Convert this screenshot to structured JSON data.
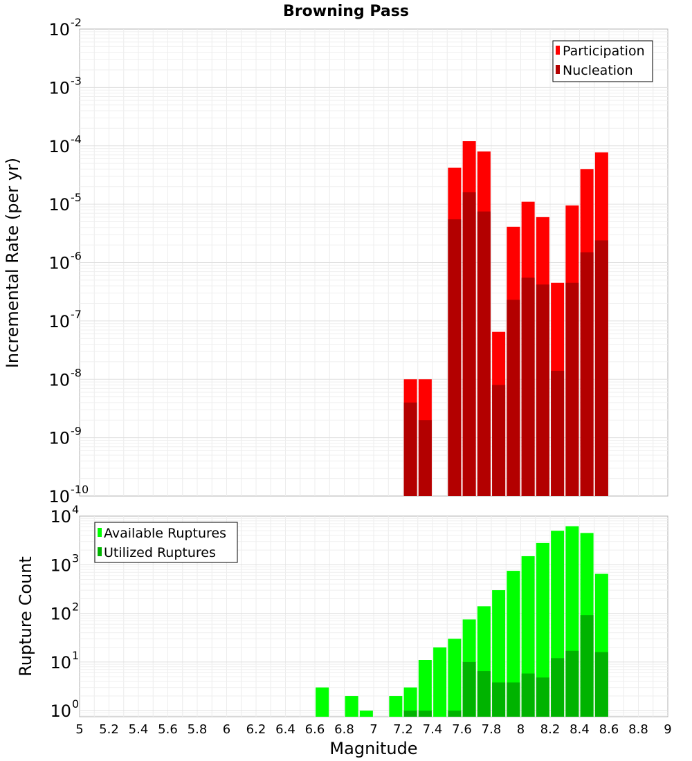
{
  "chart_data": [
    {
      "type": "bar",
      "title": "Browning Pass",
      "xlabel": "",
      "ylabel": "Incremental Rate (per yr)",
      "yscale": "log",
      "ylim": [
        1e-10,
        0.01
      ],
      "xlim": [
        5,
        9
      ],
      "grid": true,
      "legend_position": "top-right",
      "y_ticks": [
        {
          "base": "10",
          "exp": "-10"
        },
        {
          "base": "10",
          "exp": "-9"
        },
        {
          "base": "10",
          "exp": "-8"
        },
        {
          "base": "10",
          "exp": "-7"
        },
        {
          "base": "10",
          "exp": "-6"
        },
        {
          "base": "10",
          "exp": "-5"
        },
        {
          "base": "10",
          "exp": "-4"
        },
        {
          "base": "10",
          "exp": "-3"
        },
        {
          "base": "10",
          "exp": "-2"
        }
      ],
      "x": [
        7.25,
        7.35,
        7.55,
        7.65,
        7.75,
        7.85,
        7.95,
        8.05,
        8.15,
        8.25,
        8.35,
        8.45,
        8.55
      ],
      "series": [
        {
          "name": "Participation",
          "color": "#ff0000",
          "values": [
            1e-08,
            1e-08,
            4.2e-05,
            0.00012,
            8e-05,
            6.5e-08,
            4.1e-06,
            1.1e-05,
            6e-06,
            4.5e-07,
            9.5e-06,
            4e-05,
            7.7e-05
          ]
        },
        {
          "name": "Nucleation",
          "color": "#b30000",
          "values": [
            4e-09,
            2e-09,
            5.5e-06,
            1.6e-05,
            7.5e-06,
            8e-09,
            2.3e-07,
            5.5e-07,
            4.2e-07,
            1.4e-08,
            4.5e-07,
            1.5e-06,
            2.4e-06
          ]
        }
      ]
    },
    {
      "type": "bar",
      "title": "",
      "xlabel": "Magnitude",
      "ylabel": "Rupture Count",
      "yscale": "log",
      "ylim": [
        0.75,
        10000
      ],
      "xlim": [
        5,
        9
      ],
      "grid": true,
      "legend_position": "top-left",
      "y_ticks": [
        {
          "base": "10",
          "exp": "0",
          "value": 1
        },
        {
          "base": "10",
          "exp": "1",
          "value": 10
        },
        {
          "base": "10",
          "exp": "2",
          "value": 100
        },
        {
          "base": "10",
          "exp": "3",
          "value": 1000
        },
        {
          "base": "10",
          "exp": "4",
          "value": 10000
        }
      ],
      "x_ticks": [
        "5",
        "5.2",
        "5.4",
        "5.6",
        "5.8",
        "6",
        "6.2",
        "6.4",
        "6.6",
        "6.8",
        "7",
        "7.2",
        "7.4",
        "7.6",
        "7.8",
        "8",
        "8.2",
        "8.4",
        "8.6",
        "8.8",
        "9"
      ],
      "x": [
        6.65,
        6.85,
        6.95,
        7.15,
        7.25,
        7.35,
        7.45,
        7.55,
        7.65,
        7.75,
        7.85,
        7.95,
        8.05,
        8.15,
        8.25,
        8.35,
        8.45,
        8.55
      ],
      "series": [
        {
          "name": "Available Ruptures",
          "color": "#00ff00",
          "values": [
            3,
            2,
            1,
            2,
            3,
            11,
            20,
            30,
            75,
            140,
            300,
            750,
            1500,
            2800,
            5000,
            6200,
            4500,
            650
          ]
        },
        {
          "name": "Utilized Ruptures",
          "color": "#00b300",
          "values": [
            0,
            0,
            0,
            0,
            1,
            1,
            0,
            1,
            10,
            6.5,
            3.8,
            3.8,
            5.8,
            4.8,
            12,
            17,
            92,
            16
          ]
        }
      ]
    }
  ]
}
